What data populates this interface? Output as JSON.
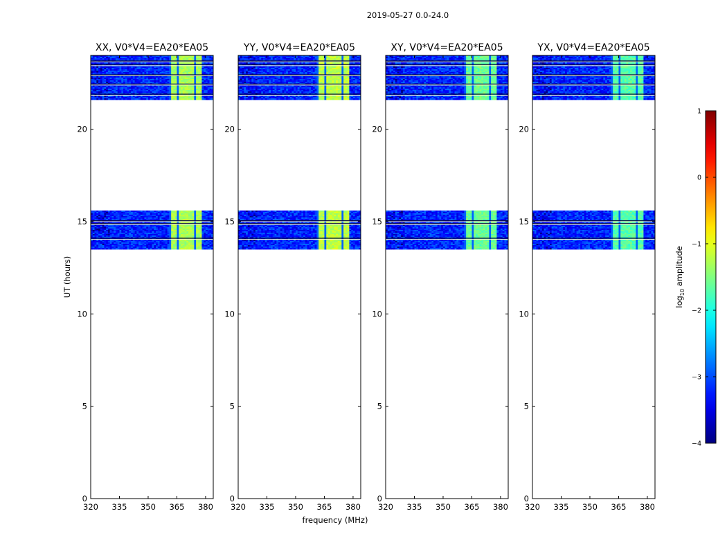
{
  "chart_data": {
    "type": "heatmap",
    "suptitle": "2019-05-27 0.0-24.0",
    "xlabel": "frequency (MHz)",
    "ylabel": "UT (hours)",
    "xlim": [
      320,
      384
    ],
    "ylim": [
      0,
      24
    ],
    "xticks": [
      "320",
      "335",
      "350",
      "365",
      "380"
    ],
    "xtick_values": [
      320,
      335,
      350,
      365,
      380
    ],
    "yticks": [
      "0",
      "5",
      "10",
      "15",
      "20"
    ],
    "ytick_values": [
      0,
      5,
      10,
      15,
      20
    ],
    "panels": [
      {
        "title": "XX, V0*V4=EA20*EA05",
        "strong_band_level": -1.3
      },
      {
        "title": "YY, V0*V4=EA20*EA05",
        "strong_band_level": -1.2
      },
      {
        "title": "XY, V0*V4=EA20*EA05",
        "strong_band_level": -1.6
      },
      {
        "title": "YX, V0*V4=EA20*EA05",
        "strong_band_level": -1.7
      }
    ],
    "data_blocks_ut": [
      [
        13.5,
        15.6
      ],
      [
        21.6,
        24.0
      ]
    ],
    "background_level": -3.2,
    "bright_band_mhz": [
      361,
      378
    ],
    "colorbar": {
      "label": "log10 amplitude",
      "range": [
        -4,
        1
      ],
      "ticks": [
        "1",
        "0",
        "−1",
        "−2",
        "−3",
        "−4"
      ],
      "tick_values": [
        1,
        0,
        -1,
        -2,
        -3,
        -4
      ],
      "colormap": "jet"
    }
  }
}
